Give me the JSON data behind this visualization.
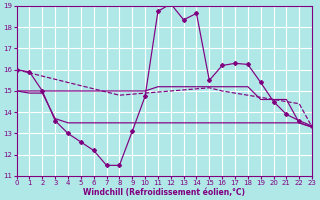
{
  "xlabel": "Windchill (Refroidissement éolien,°C)",
  "bg_color": "#b0e8e8",
  "grid_color": "#ffffff",
  "line_color": "#800080",
  "xlim": [
    0,
    23
  ],
  "ylim": [
    11,
    19
  ],
  "yticks": [
    11,
    12,
    13,
    14,
    15,
    16,
    17,
    18,
    19
  ],
  "xticks": [
    0,
    1,
    2,
    3,
    4,
    5,
    6,
    7,
    8,
    9,
    10,
    11,
    12,
    13,
    14,
    15,
    16,
    17,
    18,
    19,
    20,
    21,
    22,
    23
  ],
  "curve1_x": [
    0,
    1,
    2,
    3,
    4,
    5,
    6,
    7,
    8,
    9,
    10,
    11,
    12,
    13,
    14,
    15,
    16,
    17,
    18,
    19,
    20,
    21,
    22,
    23
  ],
  "curve1_y": [
    16.0,
    15.85,
    15.7,
    15.55,
    15.4,
    15.25,
    15.1,
    14.95,
    14.8,
    14.85,
    14.9,
    14.95,
    15.0,
    15.05,
    15.1,
    15.15,
    15.0,
    14.9,
    14.8,
    14.7,
    14.6,
    14.5,
    14.4,
    13.3
  ],
  "curve2_x": [
    0,
    1,
    2,
    3,
    4,
    5,
    6,
    7,
    8,
    9,
    10,
    11,
    12,
    13,
    14,
    15,
    16,
    17,
    18,
    19,
    20,
    21,
    22,
    23
  ],
  "curve2_y": [
    16.0,
    15.9,
    15.0,
    13.6,
    13.0,
    12.6,
    12.2,
    11.5,
    11.5,
    13.1,
    14.75,
    18.75,
    19.1,
    18.35,
    18.65,
    15.5,
    16.2,
    16.3,
    16.25,
    15.4,
    14.5,
    13.9,
    13.6,
    13.35
  ],
  "curve3_x": [
    0,
    1,
    2,
    3,
    4,
    5,
    6,
    7,
    8,
    9,
    10,
    11,
    12,
    13,
    14,
    15,
    16,
    17,
    18,
    19,
    20,
    21,
    22,
    23
  ],
  "curve3_y": [
    15.0,
    15.0,
    15.0,
    15.0,
    15.0,
    15.0,
    15.0,
    15.0,
    15.0,
    15.0,
    15.0,
    15.2,
    15.2,
    15.2,
    15.2,
    15.2,
    15.2,
    15.2,
    15.2,
    14.6,
    14.6,
    14.6,
    13.5,
    13.3
  ],
  "curve4_x": [
    0,
    1,
    2,
    3,
    4,
    5,
    6,
    7,
    8,
    9,
    10,
    11,
    12,
    13,
    14,
    15,
    16,
    17,
    18,
    19,
    20,
    21,
    22,
    23
  ],
  "curve4_y": [
    15.0,
    14.9,
    14.9,
    13.7,
    13.5,
    13.5,
    13.5,
    13.5,
    13.5,
    13.5,
    13.5,
    13.5,
    13.5,
    13.5,
    13.5,
    13.5,
    13.5,
    13.5,
    13.5,
    13.5,
    13.5,
    13.5,
    13.5,
    13.3
  ]
}
